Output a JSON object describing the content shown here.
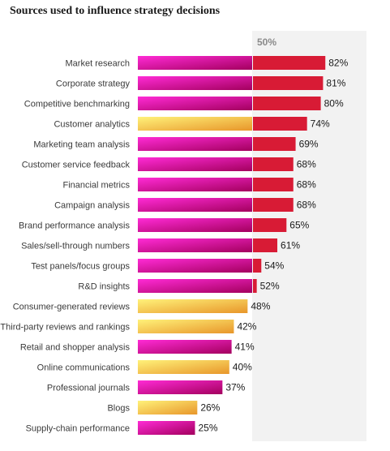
{
  "chart_data": {
    "type": "bar",
    "orientation": "horizontal",
    "title": "Sources used to influence strategy decisions",
    "reference_label": "50%",
    "reference_value": 50,
    "value_suffix": "%",
    "xlim": [
      0,
      100
    ],
    "categories": [
      "Market research",
      "Corporate strategy",
      "Competitive benchmarking",
      "Customer analytics",
      "Marketing team analysis",
      "Customer service feedback",
      "Financial metrics",
      "Campaign analysis",
      "Brand performance analysis",
      "Sales/sell-through numbers",
      "Test panels/focus groups",
      "R&D insights",
      "Consumer-generated reviews",
      "Third-party reviews and rankings",
      "Retail and shopper analysis",
      "Online communications",
      "Professional journals",
      "Blogs",
      "Supply-chain performance"
    ],
    "values": [
      82,
      81,
      80,
      74,
      69,
      68,
      68,
      68,
      65,
      61,
      54,
      52,
      48,
      42,
      41,
      40,
      37,
      26,
      25
    ],
    "highlight": [
      false,
      false,
      false,
      true,
      false,
      false,
      false,
      false,
      false,
      false,
      false,
      false,
      true,
      true,
      false,
      true,
      false,
      true,
      false
    ],
    "colors": {
      "magenta_light": "#ff2bd6",
      "magenta_dark": "#a3005e",
      "gold_light": "#fff27a",
      "gold_dark": "#e8962a",
      "above_reference": "#d81b35",
      "reference_band": "#f2f2f2"
    }
  }
}
